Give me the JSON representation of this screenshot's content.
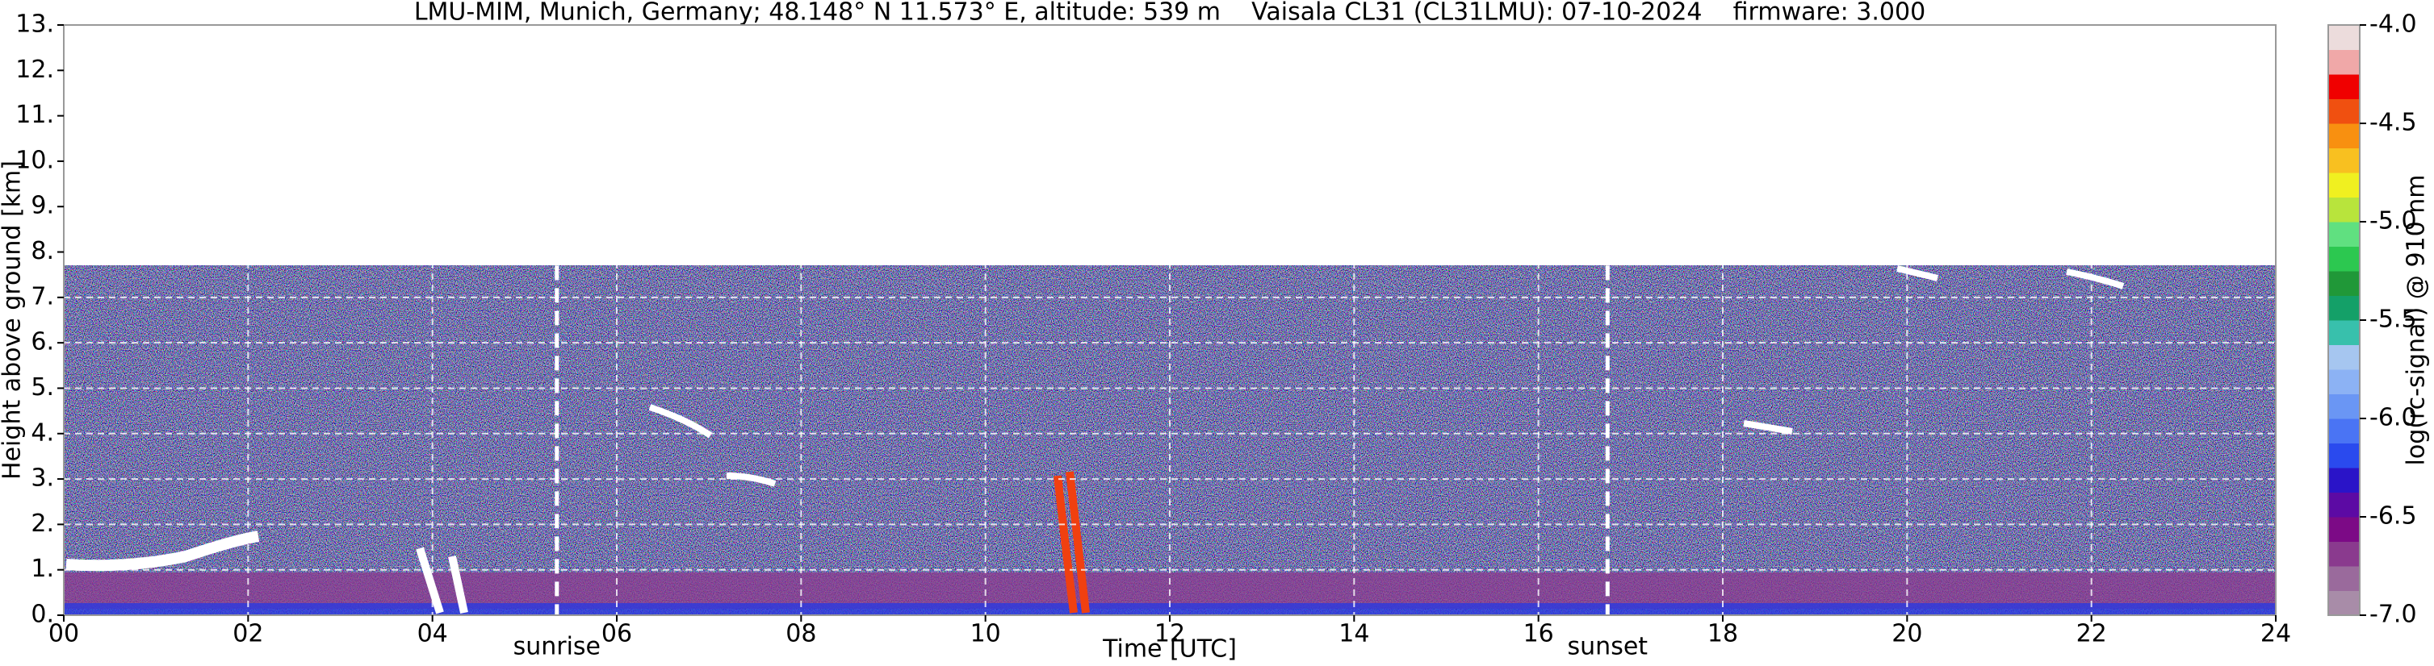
{
  "chart_data": {
    "type": "ceilometer",
    "title": "LMU-MIM, Munich, Germany; 48.148° N 11.573° E, altitude: 539 m    Vaisala CL31 (CL31LMU): 07-10-2024    firmware: 3.000",
    "x_label": "Time [UTC]",
    "y_label": "Height above ground [km]",
    "xlim": [
      0,
      24
    ],
    "xticks": [
      {
        "value": 0,
        "label": "00"
      },
      {
        "value": 2,
        "label": "02"
      },
      {
        "value": 4,
        "label": "04"
      },
      {
        "value": 6,
        "label": "06"
      },
      {
        "value": 8,
        "label": "08"
      },
      {
        "value": 10,
        "label": "10"
      },
      {
        "value": 12,
        "label": "12"
      },
      {
        "value": 14,
        "label": "14"
      },
      {
        "value": 16,
        "label": "16"
      },
      {
        "value": 18,
        "label": "18"
      },
      {
        "value": 20,
        "label": "20"
      },
      {
        "value": 22,
        "label": "22"
      },
      {
        "value": 24,
        "label": "24"
      }
    ],
    "ylim": [
      0,
      13
    ],
    "yticks": [
      {
        "value": 0,
        "label": "0."
      },
      {
        "value": 1,
        "label": "1."
      },
      {
        "value": 2,
        "label": "2."
      },
      {
        "value": 3,
        "label": "3."
      },
      {
        "value": 4,
        "label": "4."
      },
      {
        "value": 5,
        "label": "5."
      },
      {
        "value": 6,
        "label": "6."
      },
      {
        "value": 7,
        "label": "7."
      },
      {
        "value": 8,
        "label": "8."
      },
      {
        "value": 9,
        "label": "9."
      },
      {
        "value": 10,
        "label": "10."
      },
      {
        "value": 11,
        "label": "11."
      },
      {
        "value": 12,
        "label": "12."
      },
      {
        "value": 13,
        "label": "13."
      }
    ],
    "grid": true,
    "annotations": [
      {
        "label": "sunrise",
        "x": 5.35
      },
      {
        "label": "sunset",
        "x": 16.75
      }
    ],
    "colorbar": {
      "label": "log(rc-signal) @ 910 nm",
      "lim": [
        -7,
        -4
      ],
      "ticks": [
        {
          "value": -4,
          "label": "-4.0"
        },
        -4.5,
        {
          "value": -5,
          "label": "-5.0"
        },
        -5.5,
        {
          "value": -6,
          "label": "-6.0"
        },
        -6.5,
        {
          "value": -7,
          "label": "-7.0"
        }
      ],
      "colors": [
        "#a88ca8",
        "#9a6a9c",
        "#8a3a8e",
        "#7c0a86",
        "#5c0aa4",
        "#2a14c8",
        "#2a4aee",
        "#4a74f4",
        "#6a96f4",
        "#8cb2f4",
        "#a6c6f0",
        "#38c0ac",
        "#14a068",
        "#209838",
        "#2cc850",
        "#60e080",
        "#b8e43c",
        "#f0f020",
        "#f8c020",
        "#f89010",
        "#f05010",
        "#f00000",
        "#f0a8a8",
        "#ecdcdc"
      ]
    }
  }
}
